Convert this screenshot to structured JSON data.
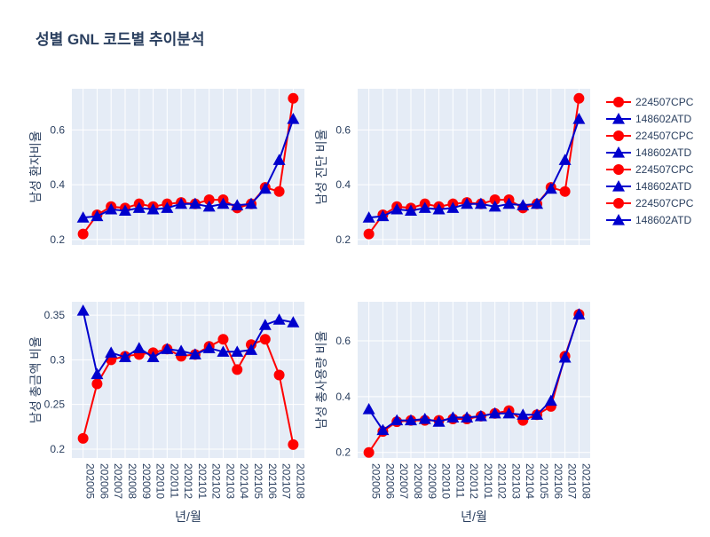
{
  "title": "성별 GNL 코드별 추이분석",
  "xlabel": "년/월",
  "colors": {
    "red": "#ff0000",
    "blue": "#0000cd",
    "plot_bg": "#e5ecf6",
    "text": "#2a3f5f"
  },
  "legend": {
    "placement": "right",
    "entries": [
      "224507CPC",
      "148602ATD",
      "224507CPC",
      "148602ATD",
      "224507CPC",
      "148602ATD",
      "224507CPC",
      "148602ATD"
    ]
  },
  "chart_data": [
    {
      "type": "line",
      "ylabel": "남성 환자비율",
      "x": [
        "202005",
        "202006",
        "202007",
        "202008",
        "202009",
        "202010",
        "202011",
        "202012",
        "202101",
        "202102",
        "202103",
        "202104",
        "202105",
        "202106",
        "202107",
        "202108"
      ],
      "ylim": [
        0.18,
        0.75
      ],
      "yticks": [
        0.2,
        0.4,
        0.6
      ],
      "series": [
        {
          "name": "224507CPC",
          "marker": "circle",
          "color": "red",
          "values": [
            0.22,
            0.29,
            0.32,
            0.315,
            0.33,
            0.32,
            0.33,
            0.335,
            0.33,
            0.345,
            0.345,
            0.315,
            0.33,
            0.39,
            0.375,
            0.715
          ]
        },
        {
          "name": "148602ATD",
          "marker": "triangle",
          "color": "blue",
          "values": [
            0.28,
            0.285,
            0.31,
            0.305,
            0.315,
            0.31,
            0.315,
            0.33,
            0.33,
            0.32,
            0.33,
            0.325,
            0.33,
            0.385,
            0.49,
            0.64
          ]
        }
      ]
    },
    {
      "type": "line",
      "ylabel": "남성 진단 비율",
      "x": [
        "202005",
        "202006",
        "202007",
        "202008",
        "202009",
        "202010",
        "202011",
        "202012",
        "202101",
        "202102",
        "202103",
        "202104",
        "202105",
        "202106",
        "202107",
        "202108"
      ],
      "ylim": [
        0.18,
        0.75
      ],
      "yticks": [
        0.2,
        0.4,
        0.6
      ],
      "series": [
        {
          "name": "224507CPC",
          "marker": "circle",
          "color": "red",
          "values": [
            0.22,
            0.29,
            0.32,
            0.315,
            0.33,
            0.32,
            0.33,
            0.335,
            0.33,
            0.345,
            0.345,
            0.315,
            0.33,
            0.39,
            0.375,
            0.715
          ]
        },
        {
          "name": "148602ATD",
          "marker": "triangle",
          "color": "blue",
          "values": [
            0.28,
            0.285,
            0.31,
            0.305,
            0.315,
            0.31,
            0.315,
            0.33,
            0.33,
            0.32,
            0.33,
            0.325,
            0.33,
            0.385,
            0.49,
            0.64
          ]
        }
      ]
    },
    {
      "type": "line",
      "ylabel": "남성 총금액 비율",
      "x": [
        "202005",
        "202006",
        "202007",
        "202008",
        "202009",
        "202010",
        "202011",
        "202012",
        "202101",
        "202102",
        "202103",
        "202104",
        "202105",
        "202106",
        "202107",
        "202108"
      ],
      "ylim": [
        0.19,
        0.365
      ],
      "yticks": [
        0.2,
        0.25,
        0.3,
        0.35
      ],
      "series": [
        {
          "name": "224507CPC",
          "marker": "circle",
          "color": "red",
          "values": [
            0.212,
            0.273,
            0.3,
            0.304,
            0.306,
            0.308,
            0.312,
            0.304,
            0.306,
            0.315,
            0.323,
            0.289,
            0.317,
            0.323,
            0.283,
            0.205
          ]
        },
        {
          "name": "148602ATD",
          "marker": "triangle",
          "color": "blue",
          "values": [
            0.355,
            0.284,
            0.308,
            0.303,
            0.313,
            0.303,
            0.312,
            0.31,
            0.306,
            0.313,
            0.309,
            0.309,
            0.311,
            0.339,
            0.345,
            0.342
          ]
        }
      ]
    },
    {
      "type": "line",
      "ylabel": "남성 총사용량 비율",
      "x": [
        "202005",
        "202006",
        "202007",
        "202008",
        "202009",
        "202010",
        "202011",
        "202012",
        "202101",
        "202102",
        "202103",
        "202104",
        "202105",
        "202106",
        "202107",
        "202108"
      ],
      "ylim": [
        0.18,
        0.74
      ],
      "yticks": [
        0.2,
        0.4,
        0.6
      ],
      "series": [
        {
          "name": "224507CPC",
          "marker": "circle",
          "color": "red",
          "values": [
            0.2,
            0.275,
            0.31,
            0.315,
            0.315,
            0.315,
            0.32,
            0.32,
            0.33,
            0.34,
            0.35,
            0.315,
            0.335,
            0.365,
            0.545,
            0.695
          ]
        },
        {
          "name": "148602ATD",
          "marker": "triangle",
          "color": "blue",
          "values": [
            0.355,
            0.28,
            0.315,
            0.315,
            0.32,
            0.31,
            0.325,
            0.325,
            0.33,
            0.34,
            0.34,
            0.335,
            0.335,
            0.385,
            0.54,
            0.695
          ]
        }
      ]
    }
  ]
}
